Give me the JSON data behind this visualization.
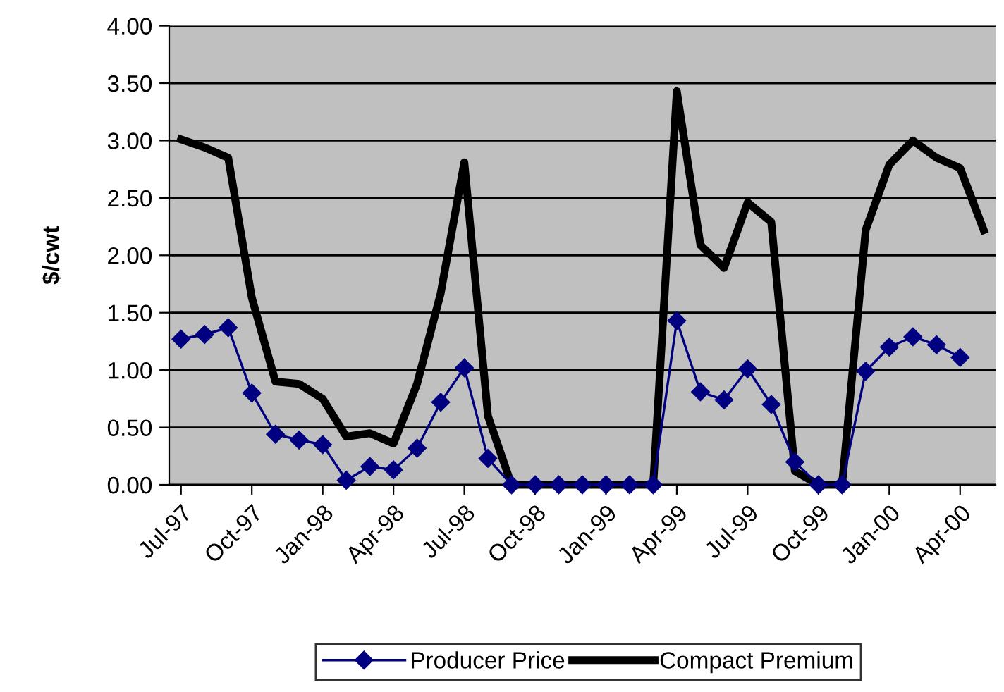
{
  "chart_data": {
    "type": "line",
    "ylabel": "$/cwt",
    "categories": [
      "Jul-97",
      null,
      null,
      "Oct-97",
      null,
      null,
      "Jan-98",
      null,
      null,
      "Apr-98",
      null,
      null,
      "Jul-98",
      null,
      null,
      "Oct-98",
      null,
      null,
      "Jan-99",
      null,
      null,
      "Apr-99",
      null,
      null,
      "Jul-99",
      null,
      null,
      "Oct-99",
      null,
      null,
      "Jan-00",
      null,
      null,
      "Apr-00",
      null
    ],
    "series": [
      {
        "name": "Producer Price",
        "color": "#000080",
        "marker": "diamond",
        "line_style": "solid",
        "values": [
          1.27,
          1.31,
          1.37,
          0.8,
          0.44,
          0.39,
          0.35,
          0.04,
          0.16,
          0.13,
          0.32,
          0.72,
          1.02,
          0.23,
          0,
          0,
          0,
          0,
          0,
          0,
          0,
          1.43,
          0.81,
          0.74,
          1.01,
          0.7,
          0.2,
          0,
          0,
          0.99,
          1.2,
          1.29,
          1.22,
          1.11,
          null
        ]
      },
      {
        "name": "Compact Premium",
        "color": "#000000",
        "marker": "none",
        "line_style": "solid",
        "values": [
          3.01,
          2.94,
          2.85,
          1.63,
          0.9,
          0.88,
          0.75,
          0.42,
          0.45,
          0.36,
          0.88,
          1.67,
          2.81,
          0.6,
          0,
          0,
          0,
          0,
          0,
          0,
          0,
          3.43,
          2.09,
          1.89,
          2.46,
          2.29,
          0.12,
          0,
          0,
          2.22,
          2.79,
          3.0,
          2.85,
          2.76,
          2.22
        ]
      }
    ],
    "ylim": [
      0,
      4
    ],
    "yticks": [
      {
        "value": 0,
        "label": "0.00"
      },
      {
        "value": 0.5,
        "label": "0.50"
      },
      {
        "value": 1,
        "label": "1.00"
      },
      {
        "value": 1.5,
        "label": "1.50"
      },
      {
        "value": 2,
        "label": "2.00"
      },
      {
        "value": 2.5,
        "label": "2.50"
      },
      {
        "value": 3,
        "label": "3.00"
      },
      {
        "value": 3.5,
        "label": "3.50"
      },
      {
        "value": 4,
        "label": "4.00"
      }
    ],
    "grid": "y",
    "legend": "bottom"
  }
}
